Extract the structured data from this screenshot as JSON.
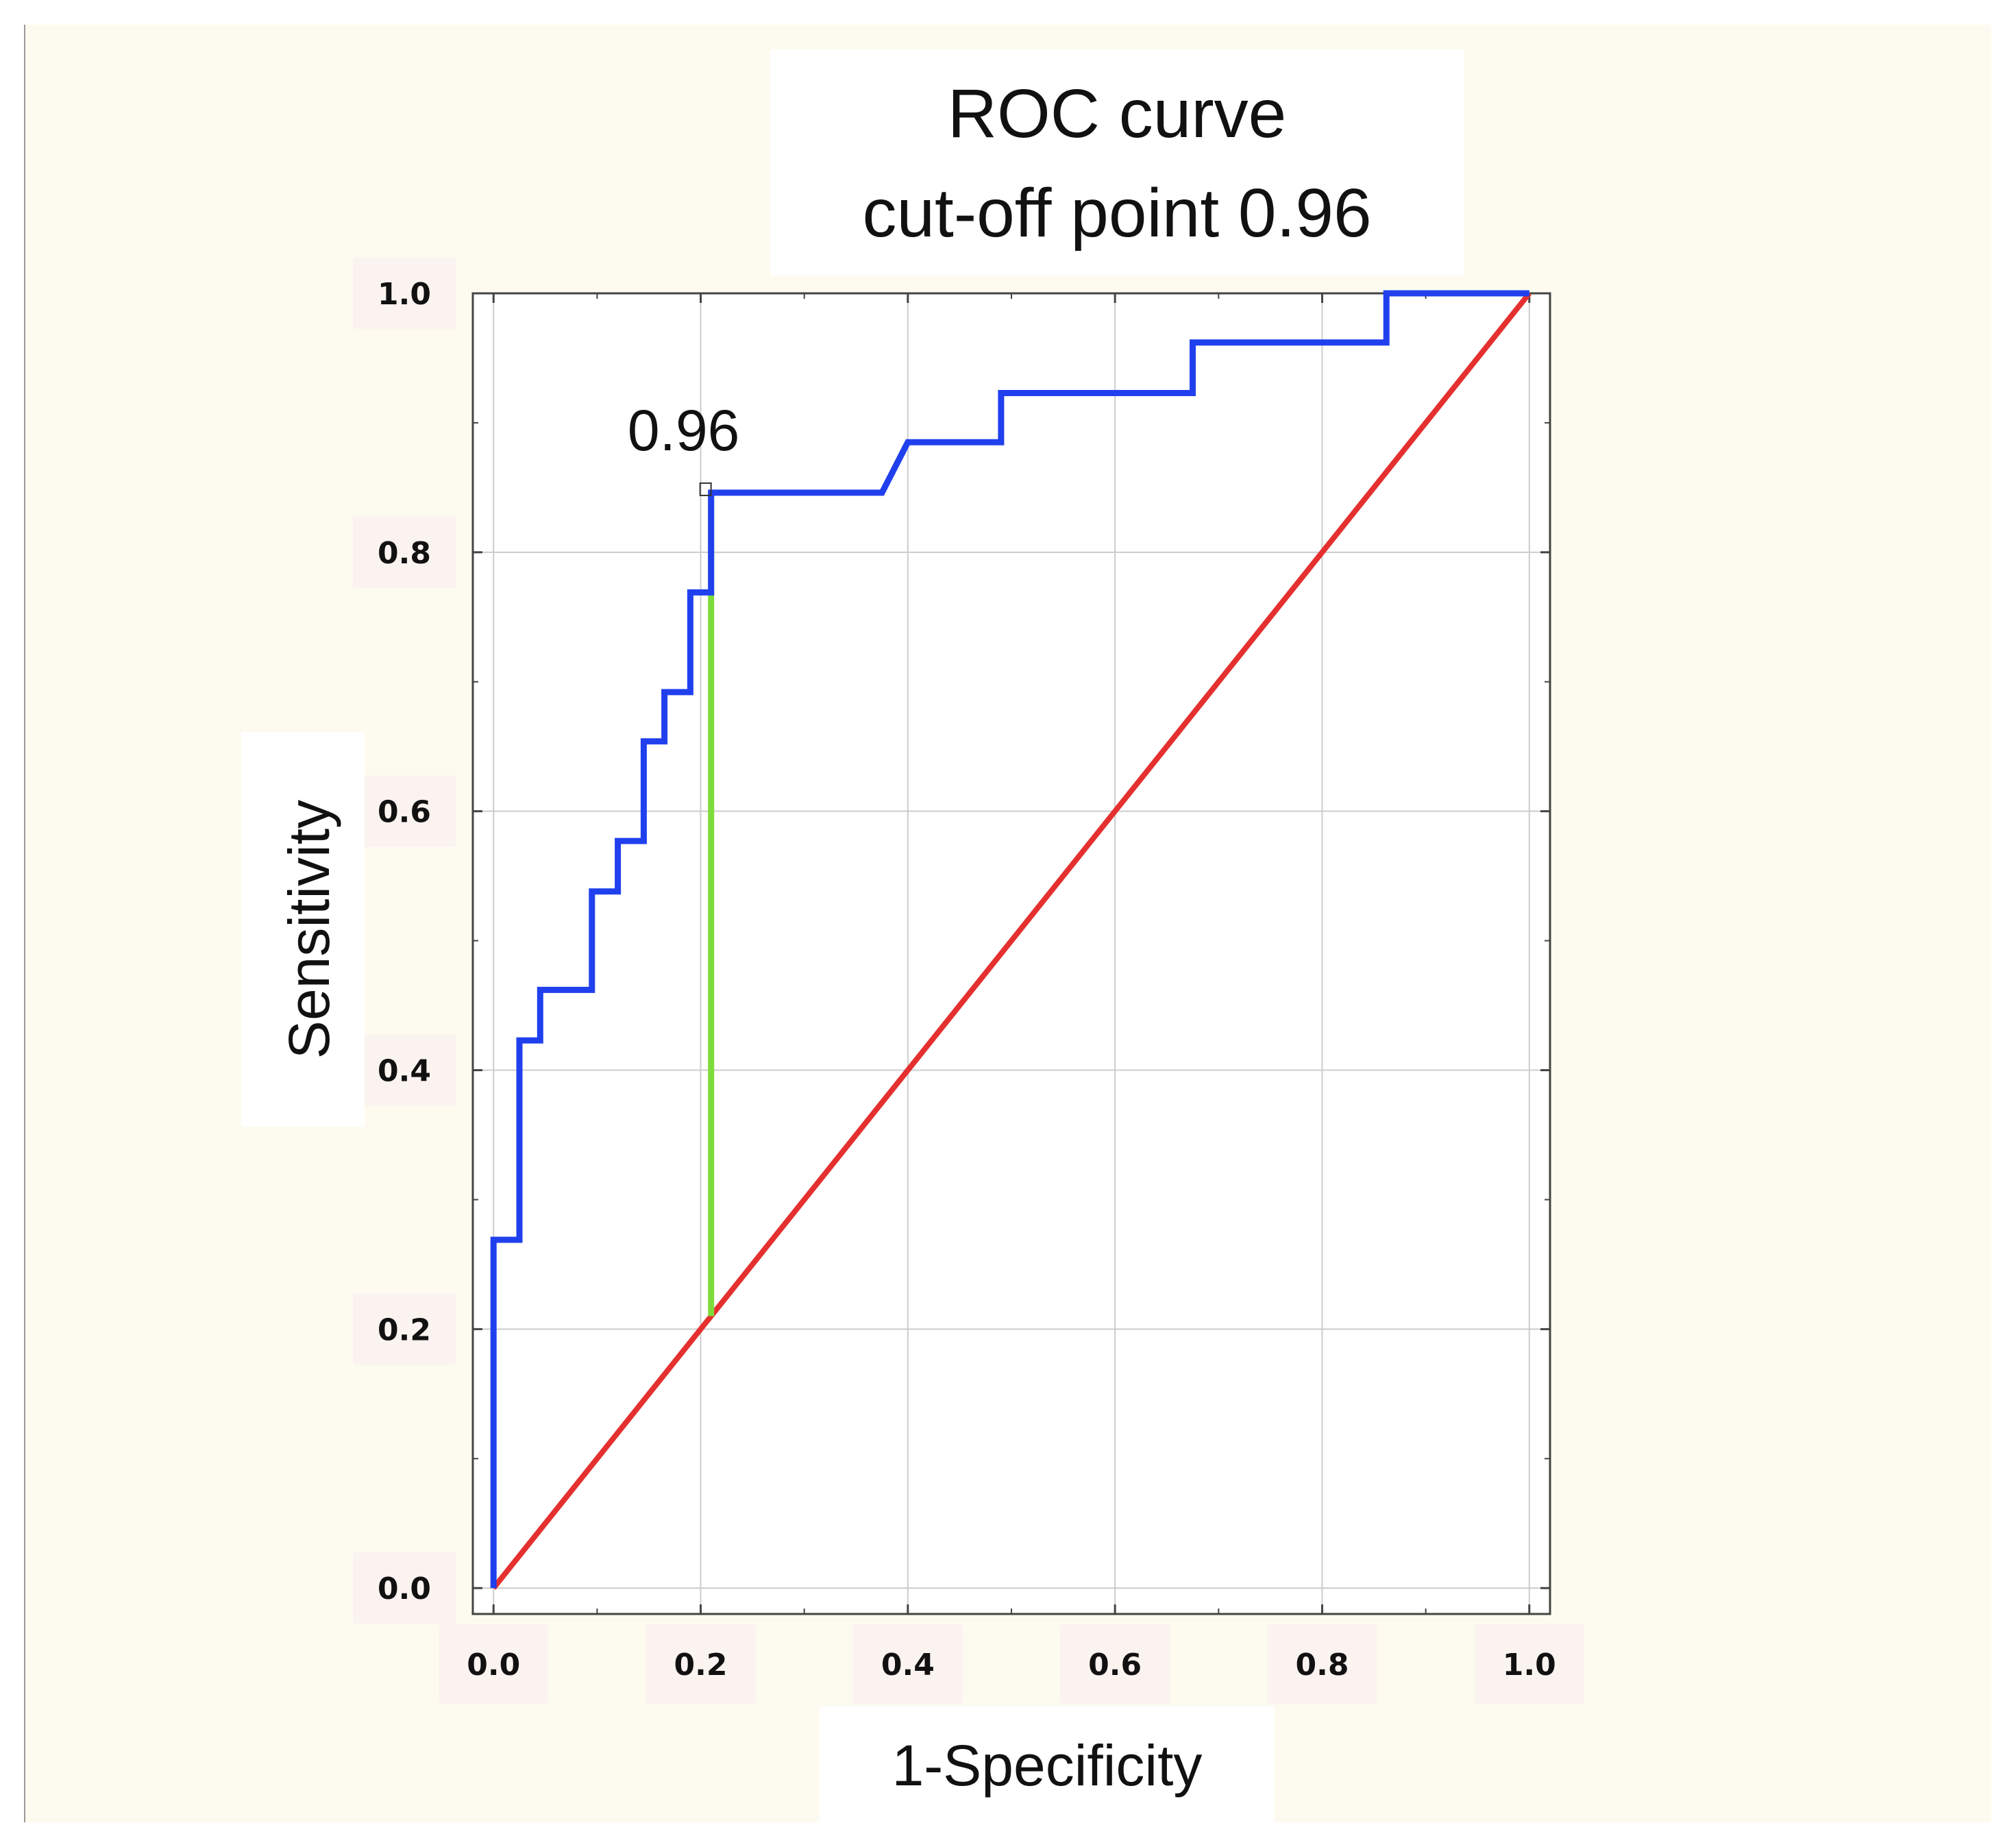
{
  "chart_data": {
    "type": "line",
    "title_lines": [
      "ROC curve",
      "cut-off point 0.96"
    ],
    "xlabel": "1-Specificity",
    "ylabel": "Sensitivity",
    "xlim": [
      -0.02,
      1.02
    ],
    "ylim": [
      -0.02,
      1.0
    ],
    "x_ticks": [
      0.0,
      0.2,
      0.4,
      0.6,
      0.8,
      1.0
    ],
    "y_ticks": [
      0.0,
      0.2,
      0.4,
      0.6,
      0.8,
      1.0
    ],
    "x_tick_labels": [
      "0.0",
      "0.2",
      "0.4",
      "0.6",
      "0.8",
      "1.0"
    ],
    "y_tick_labels": [
      "0.0",
      "0.2",
      "0.4",
      "0.6",
      "0.8",
      "1.0"
    ],
    "grid": true,
    "colors": {
      "background": "#fdfbf0",
      "roc": "#2040ee",
      "reference": "#e53030",
      "cutoff": "#7ddc3a",
      "label_box": "#ffffff",
      "tick_box": "#fbf3ef",
      "grid": "#cccccc",
      "axes": "#444444"
    },
    "series": [
      {
        "name": "ROC",
        "x": [
          0.0,
          0.0,
          0.025,
          0.025,
          0.045,
          0.045,
          0.095,
          0.095,
          0.12,
          0.12,
          0.145,
          0.145,
          0.165,
          0.165,
          0.19,
          0.19,
          0.21,
          0.21,
          0.375,
          0.4,
          0.49,
          0.49,
          0.675,
          0.675,
          0.862,
          0.862,
          1.0
        ],
        "y": [
          0.0,
          0.269,
          0.269,
          0.423,
          0.423,
          0.462,
          0.462,
          0.538,
          0.538,
          0.577,
          0.577,
          0.654,
          0.654,
          0.692,
          0.692,
          0.769,
          0.769,
          0.846,
          0.846,
          0.885,
          0.885,
          0.923,
          0.923,
          0.962,
          0.962,
          1.0,
          1.0
        ]
      },
      {
        "name": "Reference",
        "x": [
          0.0,
          1.0
        ],
        "y": [
          0.0,
          1.0
        ]
      },
      {
        "name": "Cut-off",
        "x": [
          0.21,
          0.21
        ],
        "y": [
          0.21,
          0.846
        ]
      }
    ],
    "annotations": [
      {
        "text": "0.96",
        "x": 0.21,
        "y": 0.846
      }
    ]
  }
}
